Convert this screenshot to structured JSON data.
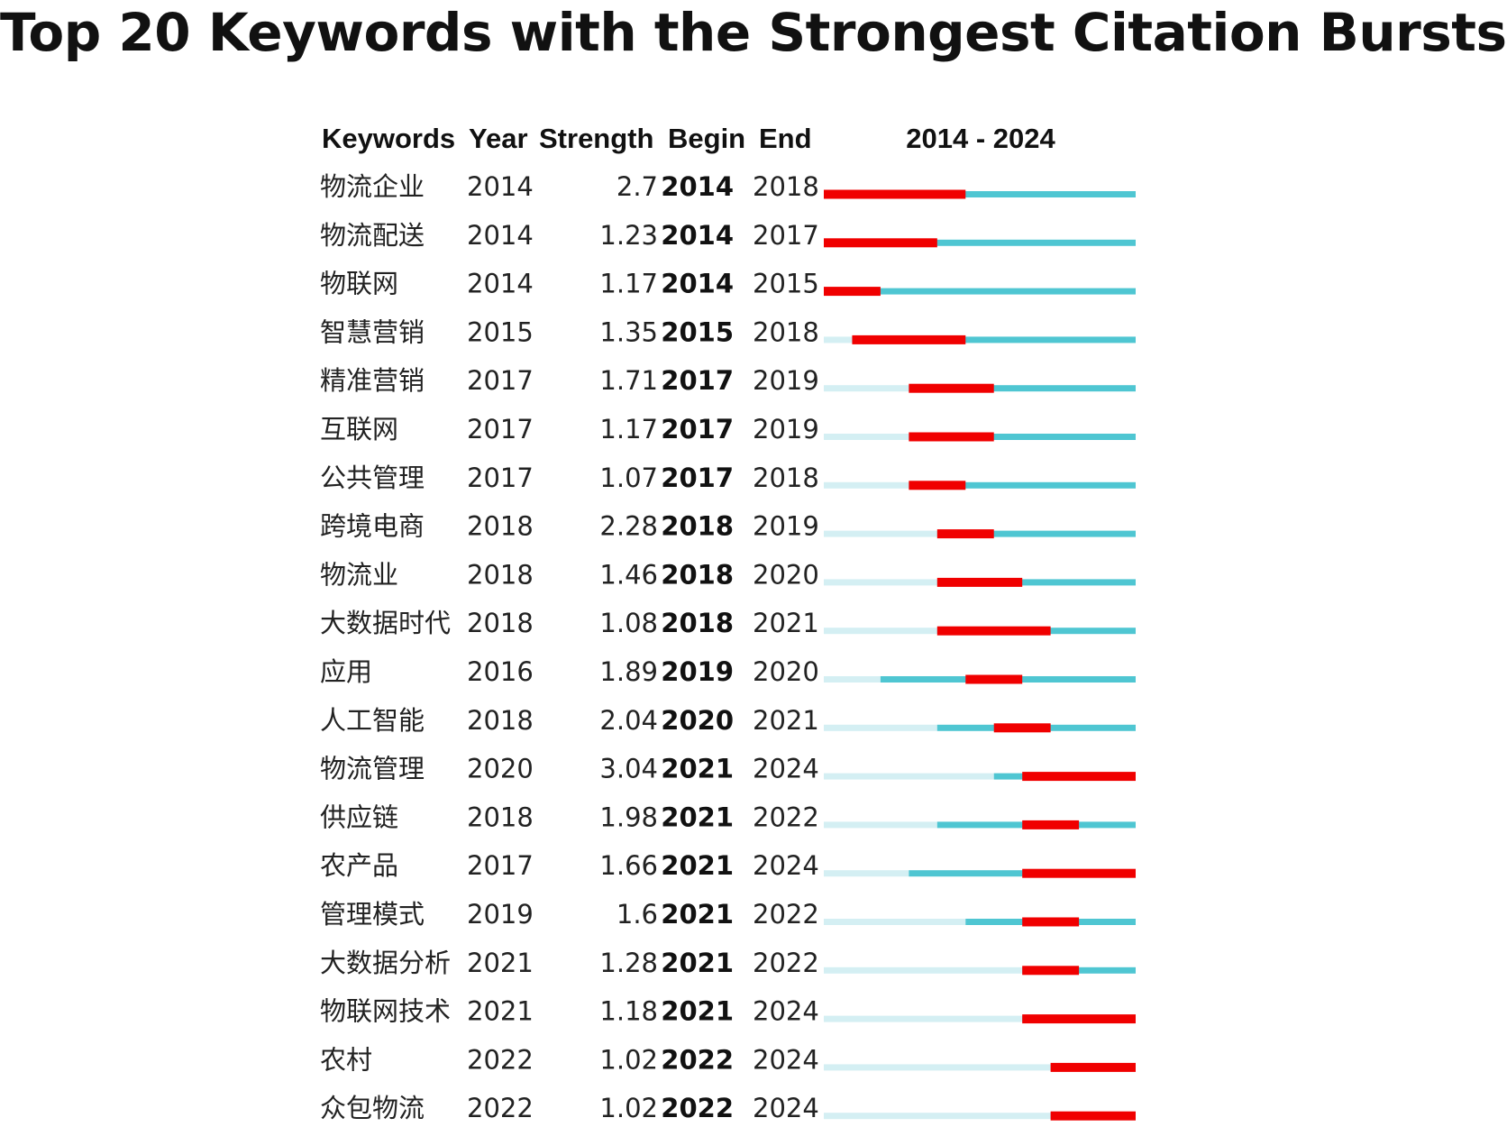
{
  "colors": {
    "burst": "#f00000",
    "active": "#4fc6d2",
    "inactive": "#d4eff3"
  },
  "chart_data": {
    "type": "table",
    "title": "Top 20 Keywords with the Strongest Citation Bursts",
    "columns": [
      "Keywords",
      "Year",
      "Strength",
      "Begin",
      "End"
    ],
    "timeline_label": "2014 - 2024",
    "timeline_start": 2014,
    "timeline_end": 2024,
    "rows": [
      {
        "keyword": "物流企业",
        "year": "2014",
        "strength": "2.7",
        "begin": "2014",
        "end": "2018"
      },
      {
        "keyword": "物流配送",
        "year": "2014",
        "strength": "1.23",
        "begin": "2014",
        "end": "2017"
      },
      {
        "keyword": "物联网",
        "year": "2014",
        "strength": "1.17",
        "begin": "2014",
        "end": "2015"
      },
      {
        "keyword": "智慧营销",
        "year": "2015",
        "strength": "1.35",
        "begin": "2015",
        "end": "2018"
      },
      {
        "keyword": "精准营销",
        "year": "2017",
        "strength": "1.71",
        "begin": "2017",
        "end": "2019"
      },
      {
        "keyword": "互联网",
        "year": "2017",
        "strength": "1.17",
        "begin": "2017",
        "end": "2019"
      },
      {
        "keyword": "公共管理",
        "year": "2017",
        "strength": "1.07",
        "begin": "2017",
        "end": "2018"
      },
      {
        "keyword": "跨境电商",
        "year": "2018",
        "strength": "2.28",
        "begin": "2018",
        "end": "2019"
      },
      {
        "keyword": "物流业",
        "year": "2018",
        "strength": "1.46",
        "begin": "2018",
        "end": "2020"
      },
      {
        "keyword": "大数据时代",
        "year": "2018",
        "strength": "1.08",
        "begin": "2018",
        "end": "2021"
      },
      {
        "keyword": "应用",
        "year": "2016",
        "strength": "1.89",
        "begin": "2019",
        "end": "2020"
      },
      {
        "keyword": "人工智能",
        "year": "2018",
        "strength": "2.04",
        "begin": "2020",
        "end": "2021"
      },
      {
        "keyword": "物流管理",
        "year": "2020",
        "strength": "3.04",
        "begin": "2021",
        "end": "2024"
      },
      {
        "keyword": "供应链",
        "year": "2018",
        "strength": "1.98",
        "begin": "2021",
        "end": "2022"
      },
      {
        "keyword": "农产品",
        "year": "2017",
        "strength": "1.66",
        "begin": "2021",
        "end": "2024"
      },
      {
        "keyword": "管理模式",
        "year": "2019",
        "strength": "1.6",
        "begin": "2021",
        "end": "2022"
      },
      {
        "keyword": "大数据分析",
        "year": "2021",
        "strength": "1.28",
        "begin": "2021",
        "end": "2022"
      },
      {
        "keyword": "物联网技术",
        "year": "2021",
        "strength": "1.18",
        "begin": "2021",
        "end": "2024"
      },
      {
        "keyword": "农村",
        "year": "2022",
        "strength": "1.02",
        "begin": "2022",
        "end": "2024"
      },
      {
        "keyword": "众包物流",
        "year": "2022",
        "strength": "1.02",
        "begin": "2022",
        "end": "2024"
      }
    ]
  }
}
